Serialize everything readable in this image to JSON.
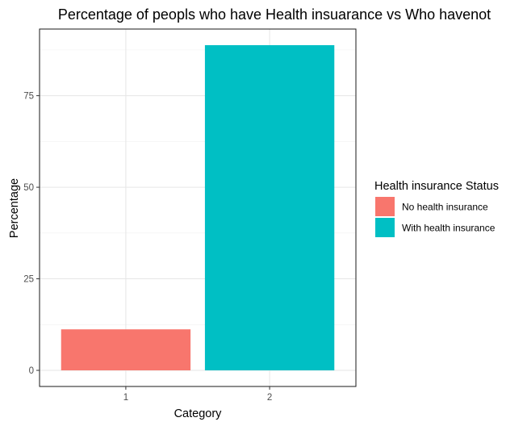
{
  "chart_data": {
    "type": "bar",
    "title": "Percentage of peopls who have Health insuarance vs Who havenot",
    "xlabel": "Category",
    "ylabel": "Percentage",
    "categories": [
      "1",
      "2"
    ],
    "values": [
      11.2,
      88.8
    ],
    "bar_colors": [
      "#F8766D",
      "#00BFC4"
    ],
    "ylim": [
      -4.4,
      93.2
    ],
    "yticks": [
      0,
      25,
      50,
      75
    ],
    "grid": true,
    "legend": {
      "title": "Health insurance Status",
      "placement": "right",
      "entries": [
        {
          "label": "No health insurance",
          "color": "#F8766D"
        },
        {
          "label": "With health insurance",
          "color": "#00BFC4"
        }
      ]
    }
  }
}
